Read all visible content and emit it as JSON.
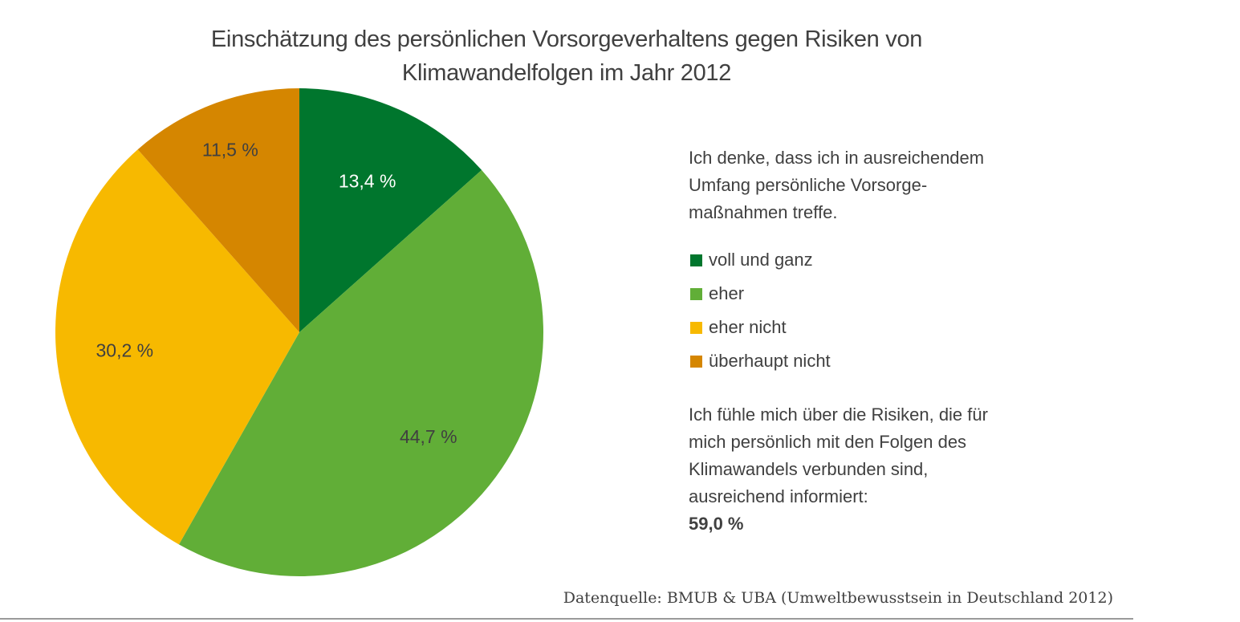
{
  "chart_data": {
    "type": "pie",
    "title_lines": [
      "Einschätzung des persönlichen Vorsorgeverhaltens gegen Risiken von",
      "Klimawandelfolgen im Jahr 2012"
    ],
    "legend_title_lines": [
      "Ich denke, dass ich in ausreichendem",
      "Umfang persönliche Vorsorge-",
      "maßnahmen treffe."
    ],
    "slices": [
      {
        "name": "voll und ganz",
        "value": 13.4,
        "label": "13,4 %",
        "color": "#00762d",
        "label_color": "#ffffff"
      },
      {
        "name": "eher",
        "value": 44.7,
        "label": "44,7 %",
        "color": "#61ae37",
        "label_color": "#404040"
      },
      {
        "name": "eher nicht",
        "value": 30.2,
        "label": "30,2 %",
        "color": "#f7b900",
        "label_color": "#404040"
      },
      {
        "name": "überhaupt nicht",
        "value": 11.5,
        "label": "11,5 %",
        "color": "#d58600",
        "label_color": "#404040"
      }
    ],
    "start": "12 o'clock",
    "direction": "clockwise",
    "legend_position": "right"
  },
  "info": {
    "lines": [
      "Ich fühle mich über die Risiken, die für",
      "mich persönlich mit den Folgen des",
      "Klimawandels  verbunden sind,",
      "ausreichend informiert:"
    ],
    "value": "59,0 %"
  },
  "source": "Datenquelle: BMUB & UBA (Umweltbewusstsein in Deutschland 2012)"
}
